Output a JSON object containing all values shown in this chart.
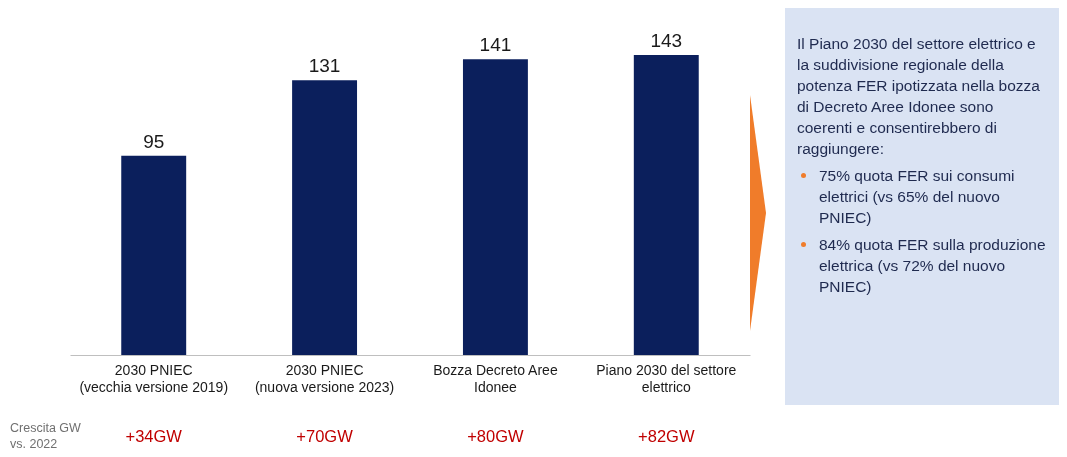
{
  "chart_data": {
    "type": "bar",
    "categories": [
      "2030 PNIEC (vecchia versione 2019)",
      "2030 PNIEC (nuova versione 2023)",
      "Bozza Decreto Aree Idonee",
      "Piano 2030 del settore elettrico"
    ],
    "values": [
      95,
      131,
      141,
      143
    ],
    "color": "#0b1f5c",
    "data_labels": true,
    "annotations": [
      "Crescita GW vs. 2022",
      "+34GW",
      "+70GW",
      "+80GW",
      "+82GW",
      "Il Piano 2030 del settore elettrico e la suddivisione regionale della potenza FER ipotizzata nella bozza di Decreto Aree Idonee sono coerenti e consentirebbero di raggiungere:",
      "75% quota FER sui consumi elettrici (vs 65% del nuovo PNIEC)",
      "84% quota FER sulla produzione elettrica (vs 72% del nuovo PNIEC)"
    ]
  }
}
